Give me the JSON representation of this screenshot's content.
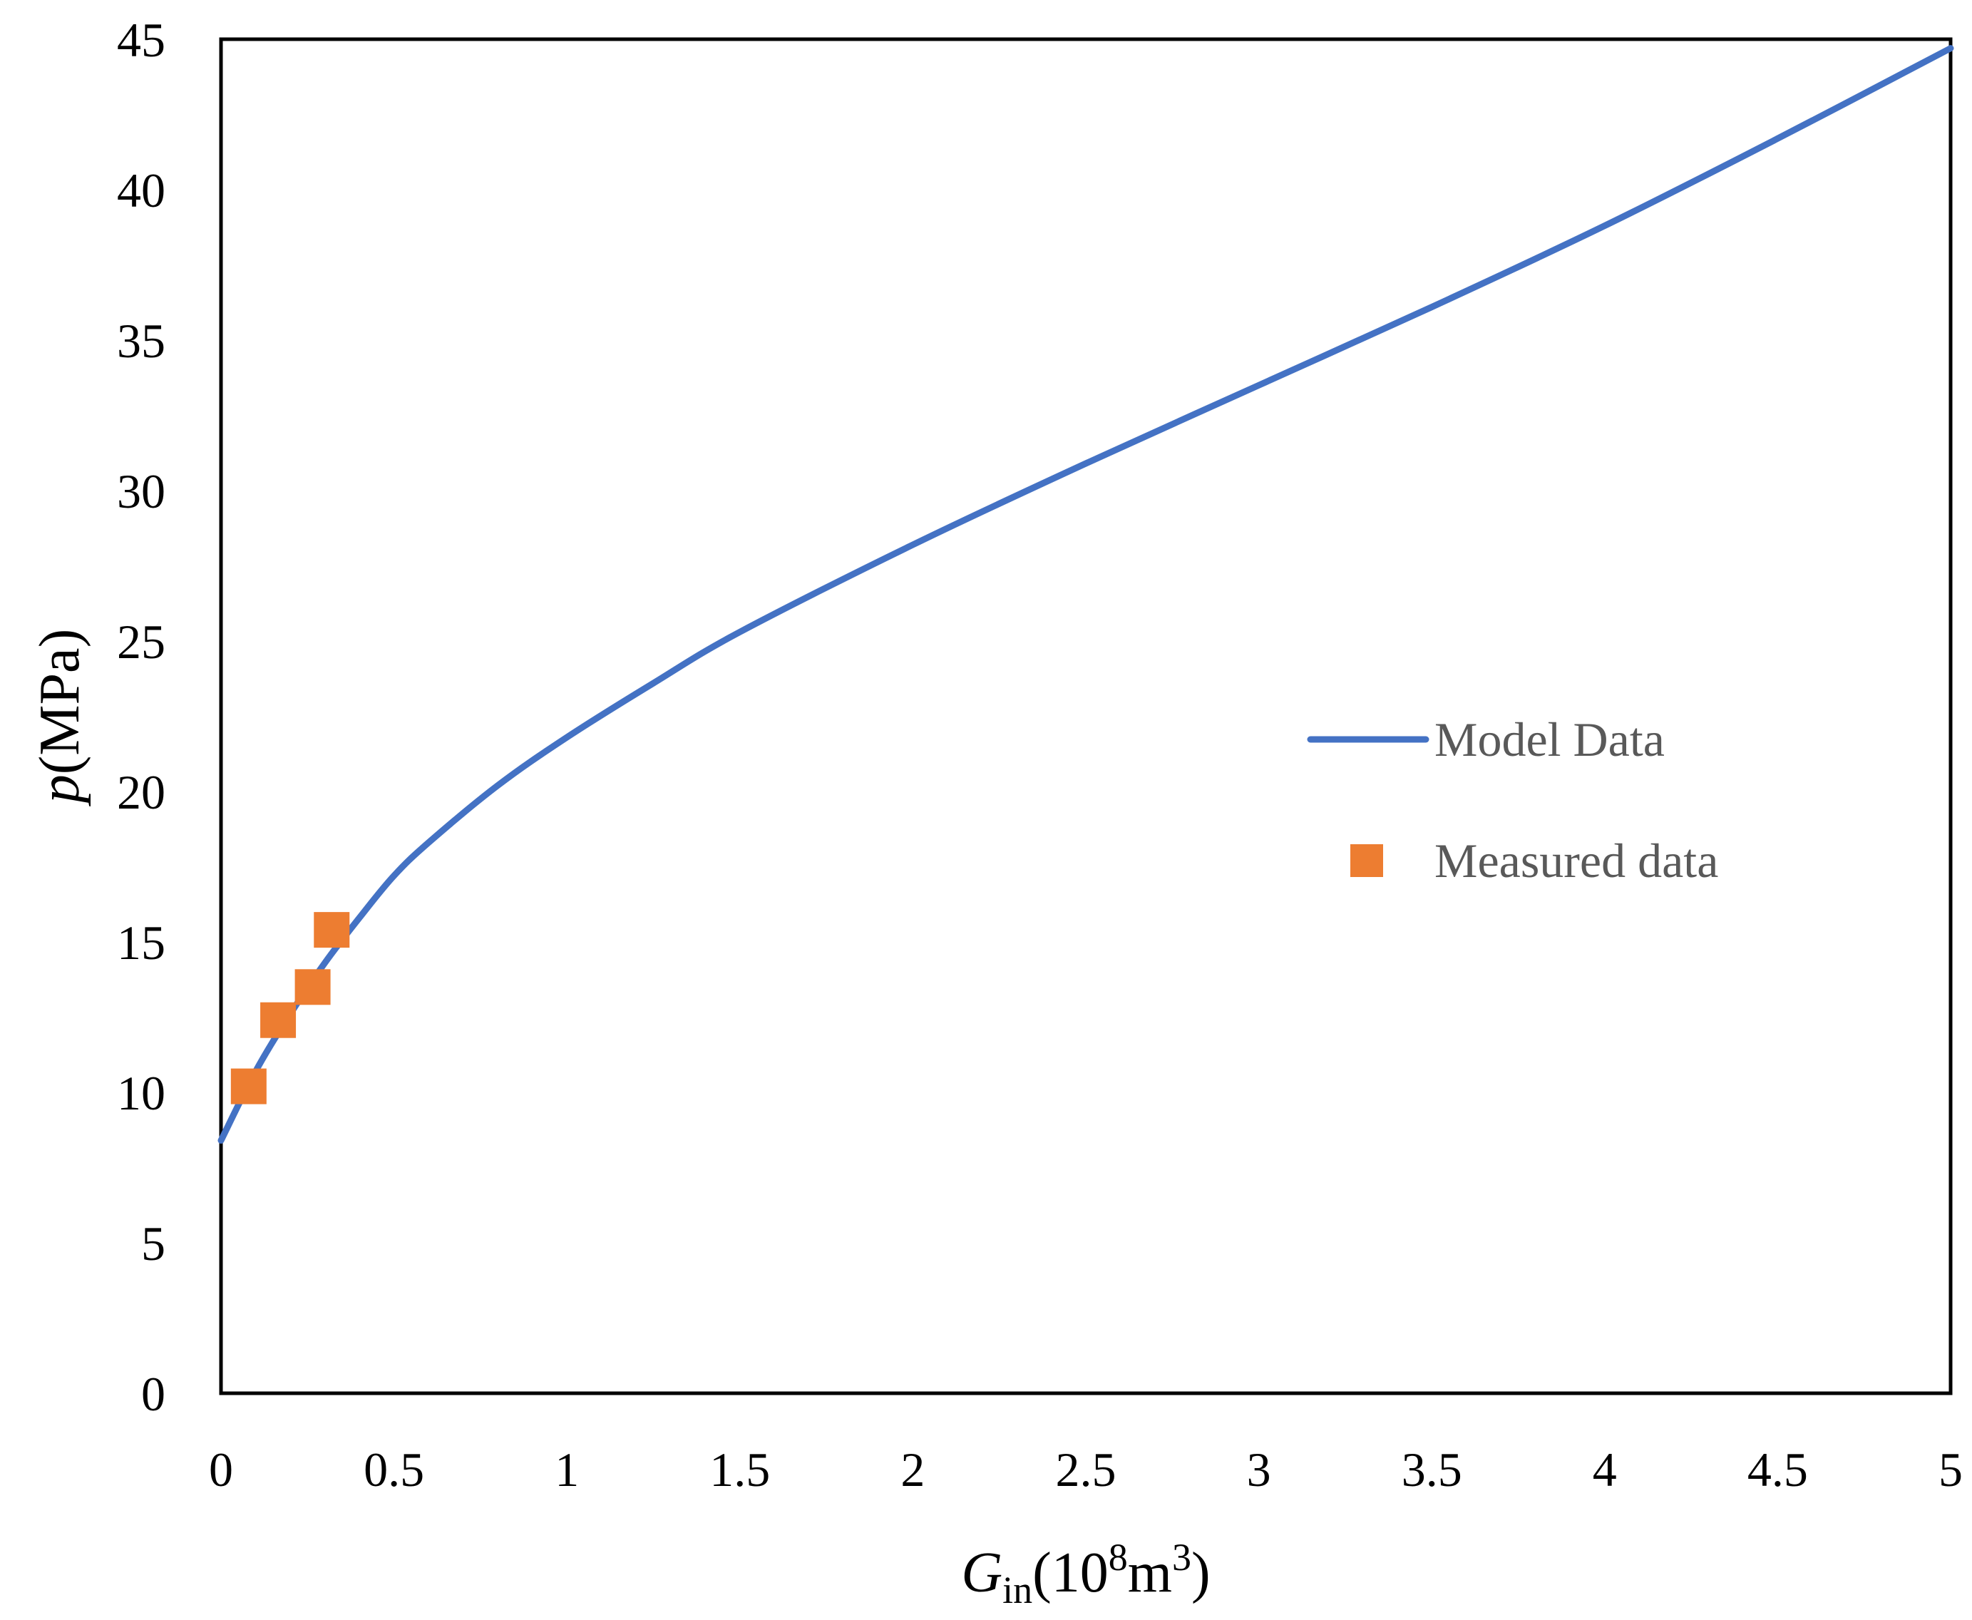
{
  "chart_data": {
    "type": "line",
    "title": "",
    "xlabel": {
      "symbol": "G",
      "subscript": "in",
      "unit_prefix": "(10",
      "unit_exp": "8",
      "unit_mid": "m",
      "unit_exp2": "3",
      "unit_suffix": ")"
    },
    "ylabel": {
      "symbol": "p",
      "unit": "(MPa)"
    },
    "xlim": [
      0,
      5
    ],
    "ylim": [
      0,
      45
    ],
    "x_ticks": [
      "0",
      "0.5",
      "1",
      "1.5",
      "2",
      "2.5",
      "3",
      "3.5",
      "4",
      "4.5",
      "5"
    ],
    "y_ticks": [
      "0",
      "5",
      "10",
      "15",
      "20",
      "25",
      "30",
      "35",
      "40",
      "45"
    ],
    "grid": false,
    "legend_position": "center-right",
    "series": [
      {
        "name": "Model Data",
        "style": "line",
        "color": "#4472C4",
        "x": [
          0,
          0.1,
          0.2,
          0.3,
          0.4,
          0.5,
          0.6,
          0.8,
          1.0,
          1.25,
          1.5,
          2.0,
          2.5,
          3.0,
          3.5,
          4.0,
          4.5,
          5.0
        ],
        "y": [
          8.4,
          10.7,
          12.6,
          14.3,
          15.8,
          17.2,
          18.3,
          20.2,
          21.8,
          23.6,
          25.3,
          28.2,
          30.9,
          33.5,
          36.1,
          38.8,
          41.7,
          44.7
        ]
      },
      {
        "name": "Measured data",
        "style": "marker-square",
        "color": "#ED7D31",
        "x": [
          0.08,
          0.165,
          0.265,
          0.32
        ],
        "y": [
          10.2,
          12.4,
          13.5,
          15.4
        ]
      }
    ]
  }
}
